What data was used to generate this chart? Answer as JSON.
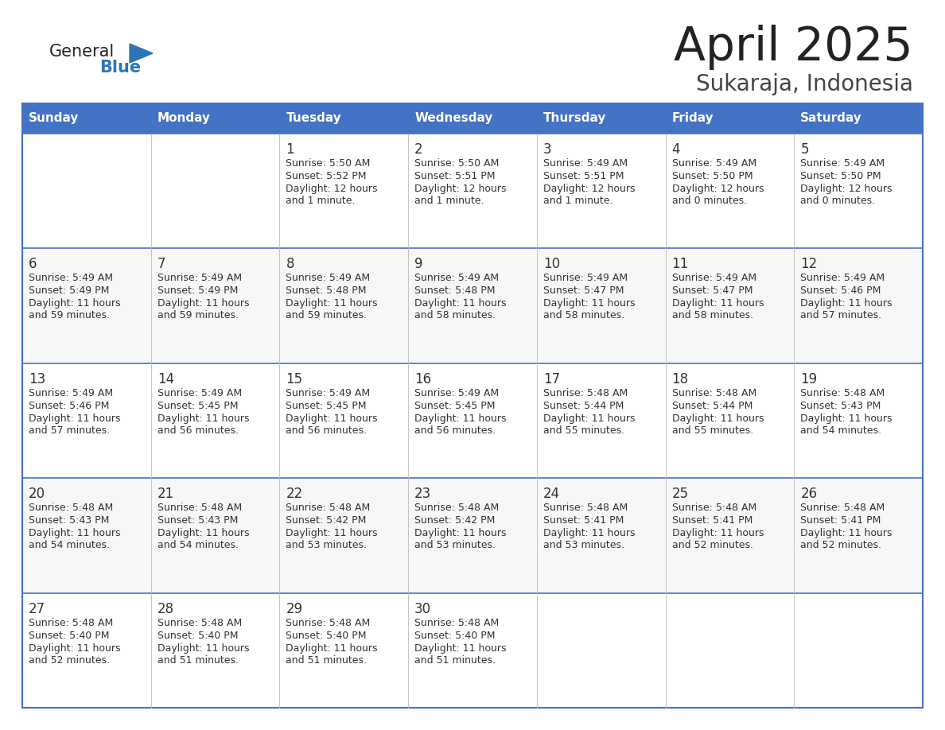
{
  "title": "April 2025",
  "subtitle": "Sukaraja, Indonesia",
  "header_bg": "#4472C4",
  "header_text_color": "#FFFFFF",
  "border_color": "#4472C4",
  "text_color": "#333333",
  "days_of_week": [
    "Sunday",
    "Monday",
    "Tuesday",
    "Wednesday",
    "Thursday",
    "Friday",
    "Saturday"
  ],
  "title_color": "#222222",
  "subtitle_color": "#444444",
  "logo_general_color": "#222222",
  "general_blue_color": "#2E75B6",
  "calendar_data": [
    [
      {
        "day": null,
        "sunrise": null,
        "sunset": null,
        "daylight": null
      },
      {
        "day": null,
        "sunrise": null,
        "sunset": null,
        "daylight": null
      },
      {
        "day": 1,
        "sunrise": "5:50 AM",
        "sunset": "5:52 PM",
        "daylight": "12 hours and 1 minute."
      },
      {
        "day": 2,
        "sunrise": "5:50 AM",
        "sunset": "5:51 PM",
        "daylight": "12 hours and 1 minute."
      },
      {
        "day": 3,
        "sunrise": "5:49 AM",
        "sunset": "5:51 PM",
        "daylight": "12 hours and 1 minute."
      },
      {
        "day": 4,
        "sunrise": "5:49 AM",
        "sunset": "5:50 PM",
        "daylight": "12 hours and 0 minutes."
      },
      {
        "day": 5,
        "sunrise": "5:49 AM",
        "sunset": "5:50 PM",
        "daylight": "12 hours and 0 minutes."
      }
    ],
    [
      {
        "day": 6,
        "sunrise": "5:49 AM",
        "sunset": "5:49 PM",
        "daylight": "11 hours and 59 minutes."
      },
      {
        "day": 7,
        "sunrise": "5:49 AM",
        "sunset": "5:49 PM",
        "daylight": "11 hours and 59 minutes."
      },
      {
        "day": 8,
        "sunrise": "5:49 AM",
        "sunset": "5:48 PM",
        "daylight": "11 hours and 59 minutes."
      },
      {
        "day": 9,
        "sunrise": "5:49 AM",
        "sunset": "5:48 PM",
        "daylight": "11 hours and 58 minutes."
      },
      {
        "day": 10,
        "sunrise": "5:49 AM",
        "sunset": "5:47 PM",
        "daylight": "11 hours and 58 minutes."
      },
      {
        "day": 11,
        "sunrise": "5:49 AM",
        "sunset": "5:47 PM",
        "daylight": "11 hours and 58 minutes."
      },
      {
        "day": 12,
        "sunrise": "5:49 AM",
        "sunset": "5:46 PM",
        "daylight": "11 hours and 57 minutes."
      }
    ],
    [
      {
        "day": 13,
        "sunrise": "5:49 AM",
        "sunset": "5:46 PM",
        "daylight": "11 hours and 57 minutes."
      },
      {
        "day": 14,
        "sunrise": "5:49 AM",
        "sunset": "5:45 PM",
        "daylight": "11 hours and 56 minutes."
      },
      {
        "day": 15,
        "sunrise": "5:49 AM",
        "sunset": "5:45 PM",
        "daylight": "11 hours and 56 minutes."
      },
      {
        "day": 16,
        "sunrise": "5:49 AM",
        "sunset": "5:45 PM",
        "daylight": "11 hours and 56 minutes."
      },
      {
        "day": 17,
        "sunrise": "5:48 AM",
        "sunset": "5:44 PM",
        "daylight": "11 hours and 55 minutes."
      },
      {
        "day": 18,
        "sunrise": "5:48 AM",
        "sunset": "5:44 PM",
        "daylight": "11 hours and 55 minutes."
      },
      {
        "day": 19,
        "sunrise": "5:48 AM",
        "sunset": "5:43 PM",
        "daylight": "11 hours and 54 minutes."
      }
    ],
    [
      {
        "day": 20,
        "sunrise": "5:48 AM",
        "sunset": "5:43 PM",
        "daylight": "11 hours and 54 minutes."
      },
      {
        "day": 21,
        "sunrise": "5:48 AM",
        "sunset": "5:43 PM",
        "daylight": "11 hours and 54 minutes."
      },
      {
        "day": 22,
        "sunrise": "5:48 AM",
        "sunset": "5:42 PM",
        "daylight": "11 hours and 53 minutes."
      },
      {
        "day": 23,
        "sunrise": "5:48 AM",
        "sunset": "5:42 PM",
        "daylight": "11 hours and 53 minutes."
      },
      {
        "day": 24,
        "sunrise": "5:48 AM",
        "sunset": "5:41 PM",
        "daylight": "11 hours and 53 minutes."
      },
      {
        "day": 25,
        "sunrise": "5:48 AM",
        "sunset": "5:41 PM",
        "daylight": "11 hours and 52 minutes."
      },
      {
        "day": 26,
        "sunrise": "5:48 AM",
        "sunset": "5:41 PM",
        "daylight": "11 hours and 52 minutes."
      }
    ],
    [
      {
        "day": 27,
        "sunrise": "5:48 AM",
        "sunset": "5:40 PM",
        "daylight": "11 hours and 52 minutes."
      },
      {
        "day": 28,
        "sunrise": "5:48 AM",
        "sunset": "5:40 PM",
        "daylight": "11 hours and 51 minutes."
      },
      {
        "day": 29,
        "sunrise": "5:48 AM",
        "sunset": "5:40 PM",
        "daylight": "11 hours and 51 minutes."
      },
      {
        "day": 30,
        "sunrise": "5:48 AM",
        "sunset": "5:40 PM",
        "daylight": "11 hours and 51 minutes."
      },
      {
        "day": null,
        "sunrise": null,
        "sunset": null,
        "daylight": null
      },
      {
        "day": null,
        "sunrise": null,
        "sunset": null,
        "daylight": null
      },
      {
        "day": null,
        "sunrise": null,
        "sunset": null,
        "daylight": null
      }
    ]
  ]
}
